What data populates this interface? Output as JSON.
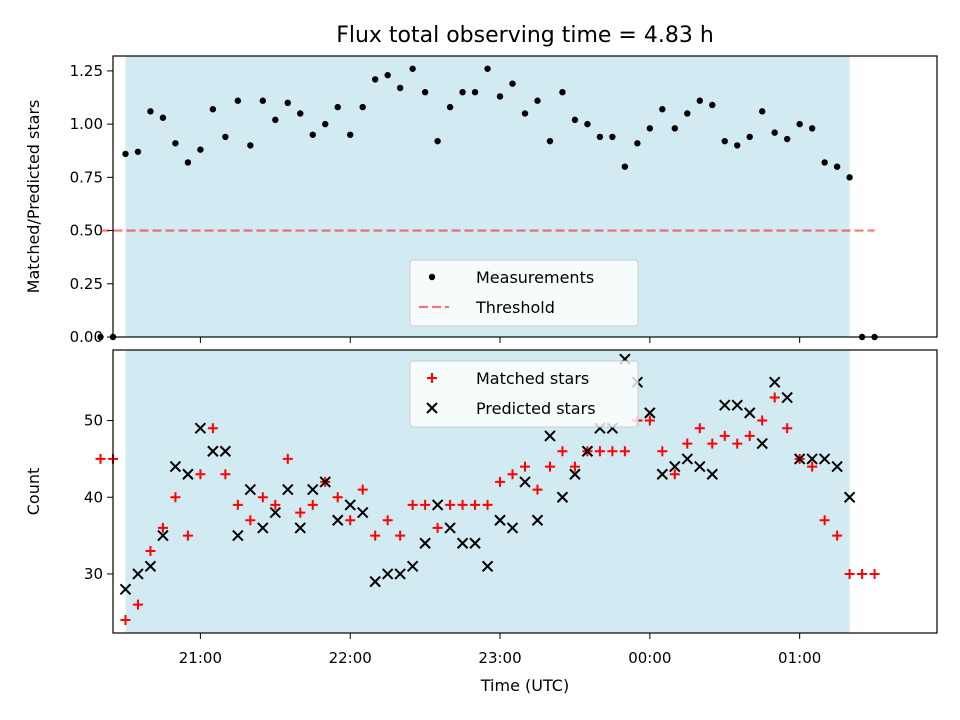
{
  "title": "Flux total observing time = 4.83 h",
  "colors": {
    "band": "#add8e6",
    "measurement": "#000000",
    "threshold": "#ff0000",
    "matched": "#ff0000",
    "predicted": "#000000"
  },
  "chart_data": [
    {
      "type": "scatter",
      "ylabel": "Matched/Predicted stars",
      "xlim": [
        "20:25",
        "01:55"
      ],
      "ylim": [
        0,
        1.32
      ],
      "ytick_values": [
        0.0,
        0.25,
        0.5,
        0.75,
        1.0,
        1.25
      ],
      "ytick_labels": [
        "0.00",
        "0.25",
        "0.50",
        "0.75",
        "1.00",
        "1.25"
      ],
      "shaded_interval": [
        "20:30",
        "01:20"
      ],
      "legend_position": "lower-center",
      "series": [
        {
          "name": "Measurements",
          "marker": "dot",
          "points": [
            {
              "x": "20:20",
              "y": 0.0
            },
            {
              "x": "20:25",
              "y": 0.0
            },
            {
              "x": "20:30",
              "y": 0.86
            },
            {
              "x": "20:35",
              "y": 0.87
            },
            {
              "x": "20:40",
              "y": 1.06
            },
            {
              "x": "20:45",
              "y": 1.03
            },
            {
              "x": "20:50",
              "y": 0.91
            },
            {
              "x": "20:55",
              "y": 0.82
            },
            {
              "x": "21:00",
              "y": 0.88
            },
            {
              "x": "21:05",
              "y": 1.07
            },
            {
              "x": "21:10",
              "y": 0.94
            },
            {
              "x": "21:15",
              "y": 1.11
            },
            {
              "x": "21:20",
              "y": 0.9
            },
            {
              "x": "21:25",
              "y": 1.11
            },
            {
              "x": "21:30",
              "y": 1.02
            },
            {
              "x": "21:35",
              "y": 1.1
            },
            {
              "x": "21:40",
              "y": 1.05
            },
            {
              "x": "21:45",
              "y": 0.95
            },
            {
              "x": "21:50",
              "y": 1.0
            },
            {
              "x": "21:55",
              "y": 1.08
            },
            {
              "x": "22:00",
              "y": 0.95
            },
            {
              "x": "22:05",
              "y": 1.08
            },
            {
              "x": "22:10",
              "y": 1.21
            },
            {
              "x": "22:15",
              "y": 1.23
            },
            {
              "x": "22:20",
              "y": 1.17
            },
            {
              "x": "22:25",
              "y": 1.26
            },
            {
              "x": "22:30",
              "y": 1.15
            },
            {
              "x": "22:35",
              "y": 0.92
            },
            {
              "x": "22:40",
              "y": 1.08
            },
            {
              "x": "22:45",
              "y": 1.15
            },
            {
              "x": "22:50",
              "y": 1.15
            },
            {
              "x": "22:55",
              "y": 1.26
            },
            {
              "x": "23:00",
              "y": 1.13
            },
            {
              "x": "23:05",
              "y": 1.19
            },
            {
              "x": "23:10",
              "y": 1.05
            },
            {
              "x": "23:15",
              "y": 1.11
            },
            {
              "x": "23:20",
              "y": 0.92
            },
            {
              "x": "23:25",
              "y": 1.15
            },
            {
              "x": "23:30",
              "y": 1.02
            },
            {
              "x": "23:35",
              "y": 1.0
            },
            {
              "x": "23:40",
              "y": 0.94
            },
            {
              "x": "23:45",
              "y": 0.94
            },
            {
              "x": "23:50",
              "y": 0.8
            },
            {
              "x": "23:55",
              "y": 0.91
            },
            {
              "x": "00:00",
              "y": 0.98
            },
            {
              "x": "00:05",
              "y": 1.07
            },
            {
              "x": "00:10",
              "y": 0.98
            },
            {
              "x": "00:15",
              "y": 1.05
            },
            {
              "x": "00:20",
              "y": 1.11
            },
            {
              "x": "00:25",
              "y": 1.09
            },
            {
              "x": "00:30",
              "y": 0.92
            },
            {
              "x": "00:35",
              "y": 0.9
            },
            {
              "x": "00:40",
              "y": 0.94
            },
            {
              "x": "00:45",
              "y": 1.06
            },
            {
              "x": "00:50",
              "y": 0.96
            },
            {
              "x": "00:55",
              "y": 0.93
            },
            {
              "x": "01:00",
              "y": 1.0
            },
            {
              "x": "01:05",
              "y": 0.98
            },
            {
              "x": "01:10",
              "y": 0.82
            },
            {
              "x": "01:15",
              "y": 0.8
            },
            {
              "x": "01:20",
              "y": 0.75
            },
            {
              "x": "01:25",
              "y": 0.0
            },
            {
              "x": "01:30",
              "y": 0.0
            }
          ]
        },
        {
          "name": "Threshold",
          "style": "dashed-line",
          "value": 0.5,
          "x_range": [
            "20:20",
            "01:30"
          ]
        }
      ]
    },
    {
      "type": "scatter",
      "xlabel": "Time (UTC)",
      "ylabel": "Count",
      "xlim": [
        "20:25",
        "01:55"
      ],
      "ylim": [
        22.3,
        59.2
      ],
      "ytick_values": [
        30,
        40,
        50
      ],
      "ytick_labels": [
        "30",
        "40",
        "50"
      ],
      "xtick_values": [
        "21:00",
        "22:00",
        "23:00",
        "00:00",
        "01:00"
      ],
      "xtick_labels": [
        "21:00",
        "22:00",
        "23:00",
        "00:00",
        "01:00"
      ],
      "shaded_interval": [
        "20:30",
        "01:20"
      ],
      "legend_position": "upper-center",
      "series": [
        {
          "name": "Matched stars",
          "marker": "plus",
          "points": [
            {
              "x": "20:20",
              "y": 45
            },
            {
              "x": "20:25",
              "y": 45
            },
            {
              "x": "20:30",
              "y": 24
            },
            {
              "x": "20:35",
              "y": 26
            },
            {
              "x": "20:40",
              "y": 33
            },
            {
              "x": "20:45",
              "y": 36
            },
            {
              "x": "20:50",
              "y": 40
            },
            {
              "x": "20:55",
              "y": 35
            },
            {
              "x": "21:00",
              "y": 43
            },
            {
              "x": "21:05",
              "y": 49
            },
            {
              "x": "21:10",
              "y": 43
            },
            {
              "x": "21:15",
              "y": 39
            },
            {
              "x": "21:20",
              "y": 37
            },
            {
              "x": "21:25",
              "y": 40
            },
            {
              "x": "21:30",
              "y": 39
            },
            {
              "x": "21:35",
              "y": 45
            },
            {
              "x": "21:40",
              "y": 38
            },
            {
              "x": "21:45",
              "y": 39
            },
            {
              "x": "21:50",
              "y": 42
            },
            {
              "x": "21:55",
              "y": 40
            },
            {
              "x": "22:00",
              "y": 37
            },
            {
              "x": "22:05",
              "y": 41
            },
            {
              "x": "22:10",
              "y": 35
            },
            {
              "x": "22:15",
              "y": 37
            },
            {
              "x": "22:20",
              "y": 35
            },
            {
              "x": "22:25",
              "y": 39
            },
            {
              "x": "22:30",
              "y": 39
            },
            {
              "x": "22:35",
              "y": 36
            },
            {
              "x": "22:40",
              "y": 39
            },
            {
              "x": "22:45",
              "y": 39
            },
            {
              "x": "22:50",
              "y": 39
            },
            {
              "x": "22:55",
              "y": 39
            },
            {
              "x": "23:00",
              "y": 42
            },
            {
              "x": "23:05",
              "y": 43
            },
            {
              "x": "23:10",
              "y": 44
            },
            {
              "x": "23:15",
              "y": 41
            },
            {
              "x": "23:20",
              "y": 44
            },
            {
              "x": "23:25",
              "y": 46
            },
            {
              "x": "23:30",
              "y": 44
            },
            {
              "x": "23:35",
              "y": 46
            },
            {
              "x": "23:40",
              "y": 46
            },
            {
              "x": "23:45",
              "y": 46
            },
            {
              "x": "23:50",
              "y": 46
            },
            {
              "x": "23:55",
              "y": 50
            },
            {
              "x": "00:00",
              "y": 50
            },
            {
              "x": "00:05",
              "y": 46
            },
            {
              "x": "00:10",
              "y": 43
            },
            {
              "x": "00:15",
              "y": 47
            },
            {
              "x": "00:20",
              "y": 49
            },
            {
              "x": "00:25",
              "y": 47
            },
            {
              "x": "00:30",
              "y": 48
            },
            {
              "x": "00:35",
              "y": 47
            },
            {
              "x": "00:40",
              "y": 48
            },
            {
              "x": "00:45",
              "y": 50
            },
            {
              "x": "00:50",
              "y": 53
            },
            {
              "x": "00:55",
              "y": 49
            },
            {
              "x": "01:00",
              "y": 45
            },
            {
              "x": "01:05",
              "y": 44
            },
            {
              "x": "01:10",
              "y": 37
            },
            {
              "x": "01:15",
              "y": 35
            },
            {
              "x": "01:20",
              "y": 30
            },
            {
              "x": "01:25",
              "y": 30
            },
            {
              "x": "01:30",
              "y": 30
            }
          ]
        },
        {
          "name": "Predicted stars",
          "marker": "x",
          "points": [
            {
              "x": "20:30",
              "y": 28
            },
            {
              "x": "20:35",
              "y": 30
            },
            {
              "x": "20:40",
              "y": 31
            },
            {
              "x": "20:45",
              "y": 35
            },
            {
              "x": "20:50",
              "y": 44
            },
            {
              "x": "20:55",
              "y": 43
            },
            {
              "x": "21:00",
              "y": 49
            },
            {
              "x": "21:05",
              "y": 46
            },
            {
              "x": "21:10",
              "y": 46
            },
            {
              "x": "21:15",
              "y": 35
            },
            {
              "x": "21:20",
              "y": 41
            },
            {
              "x": "21:25",
              "y": 36
            },
            {
              "x": "21:30",
              "y": 38
            },
            {
              "x": "21:35",
              "y": 41
            },
            {
              "x": "21:40",
              "y": 36
            },
            {
              "x": "21:45",
              "y": 41
            },
            {
              "x": "21:50",
              "y": 42
            },
            {
              "x": "21:55",
              "y": 37
            },
            {
              "x": "22:00",
              "y": 39
            },
            {
              "x": "22:05",
              "y": 38
            },
            {
              "x": "22:10",
              "y": 29
            },
            {
              "x": "22:15",
              "y": 30
            },
            {
              "x": "22:20",
              "y": 30
            },
            {
              "x": "22:25",
              "y": 31
            },
            {
              "x": "22:30",
              "y": 34
            },
            {
              "x": "22:35",
              "y": 39
            },
            {
              "x": "22:40",
              "y": 36
            },
            {
              "x": "22:45",
              "y": 34
            },
            {
              "x": "22:50",
              "y": 34
            },
            {
              "x": "22:55",
              "y": 31
            },
            {
              "x": "23:00",
              "y": 37
            },
            {
              "x": "23:05",
              "y": 36
            },
            {
              "x": "23:10",
              "y": 42
            },
            {
              "x": "23:15",
              "y": 37
            },
            {
              "x": "23:20",
              "y": 48
            },
            {
              "x": "23:25",
              "y": 40
            },
            {
              "x": "23:30",
              "y": 43
            },
            {
              "x": "23:35",
              "y": 46
            },
            {
              "x": "23:40",
              "y": 49
            },
            {
              "x": "23:45",
              "y": 49
            },
            {
              "x": "23:50",
              "y": 58
            },
            {
              "x": "23:55",
              "y": 55
            },
            {
              "x": "00:00",
              "y": 51
            },
            {
              "x": "00:05",
              "y": 43
            },
            {
              "x": "00:10",
              "y": 44
            },
            {
              "x": "00:15",
              "y": 45
            },
            {
              "x": "00:20",
              "y": 44
            },
            {
              "x": "00:25",
              "y": 43
            },
            {
              "x": "00:30",
              "y": 52
            },
            {
              "x": "00:35",
              "y": 52
            },
            {
              "x": "00:40",
              "y": 51
            },
            {
              "x": "00:45",
              "y": 47
            },
            {
              "x": "00:50",
              "y": 55
            },
            {
              "x": "00:55",
              "y": 53
            },
            {
              "x": "01:00",
              "y": 45
            },
            {
              "x": "01:05",
              "y": 45
            },
            {
              "x": "01:10",
              "y": 45
            },
            {
              "x": "01:15",
              "y": 44
            },
            {
              "x": "01:20",
              "y": 40
            }
          ]
        }
      ]
    }
  ]
}
